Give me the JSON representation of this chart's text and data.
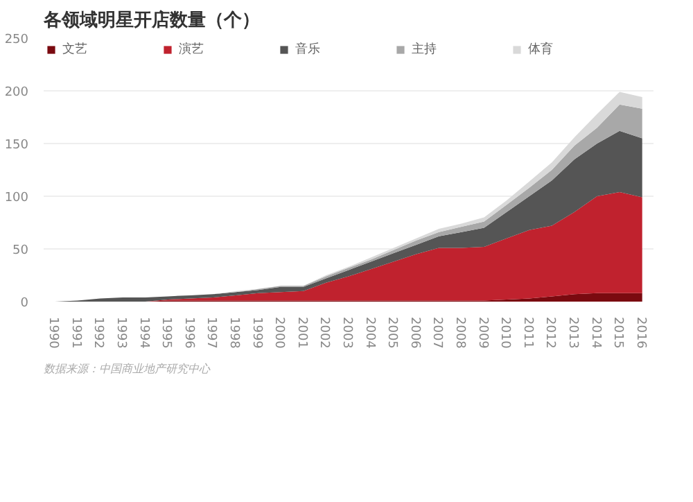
{
  "chart_data": {
    "type": "area",
    "stacked": true,
    "title": "各领域明星开店数量（个）",
    "categories": [
      "1990",
      "1991",
      "1992",
      "1993",
      "1994",
      "1995",
      "1996",
      "1997",
      "1998",
      "1999",
      "2000",
      "2001",
      "2002",
      "2003",
      "2004",
      "2005",
      "2006",
      "2007",
      "2008",
      "2009",
      "2010",
      "2011",
      "2012",
      "2013",
      "2014",
      "2015",
      "2016"
    ],
    "series": [
      {
        "name": "文艺",
        "color": "#7a0a10",
        "values": [
          0,
          0,
          0,
          0,
          0,
          1,
          1,
          1,
          1,
          1,
          1,
          1,
          1,
          1,
          1,
          1,
          1,
          1,
          1,
          1,
          2,
          3,
          5,
          7,
          8,
          8,
          8
        ]
      },
      {
        "name": "演艺",
        "color": "#c0222e",
        "values": [
          0,
          0,
          0,
          0,
          0,
          1,
          2,
          3,
          5,
          7,
          8,
          9,
          17,
          23,
          30,
          37,
          44,
          50,
          50,
          51,
          58,
          65,
          67,
          78,
          92,
          96,
          91
        ]
      },
      {
        "name": "音乐",
        "color": "#555555",
        "values": [
          0,
          1,
          3,
          4,
          4,
          3,
          3,
          3,
          3,
          3,
          5,
          4,
          4,
          6,
          7,
          8,
          9,
          11,
          15,
          18,
          25,
          32,
          43,
          50,
          50,
          58,
          56
        ]
      },
      {
        "name": "主持",
        "color": "#a8a8a8",
        "values": [
          0,
          0,
          0,
          0,
          0,
          0,
          0,
          0,
          0,
          1,
          1,
          1,
          2,
          2,
          2,
          3,
          4,
          4,
          5,
          6,
          7,
          8,
          10,
          13,
          15,
          25,
          28
        ]
      },
      {
        "name": "体育",
        "color": "#d9d9d9",
        "values": [
          0,
          0,
          0,
          0,
          0,
          0,
          0,
          0,
          1,
          0,
          0,
          0,
          1,
          1,
          2,
          2,
          2,
          3,
          3,
          4,
          4,
          6,
          7,
          8,
          13,
          12,
          11
        ]
      }
    ],
    "ylim": [
      0,
      250
    ],
    "yticks": [
      0,
      50,
      100,
      150,
      200,
      250
    ],
    "grid": "y",
    "legend": "top",
    "annotations": [
      "数据来源：中国商业地产研究中心"
    ]
  }
}
